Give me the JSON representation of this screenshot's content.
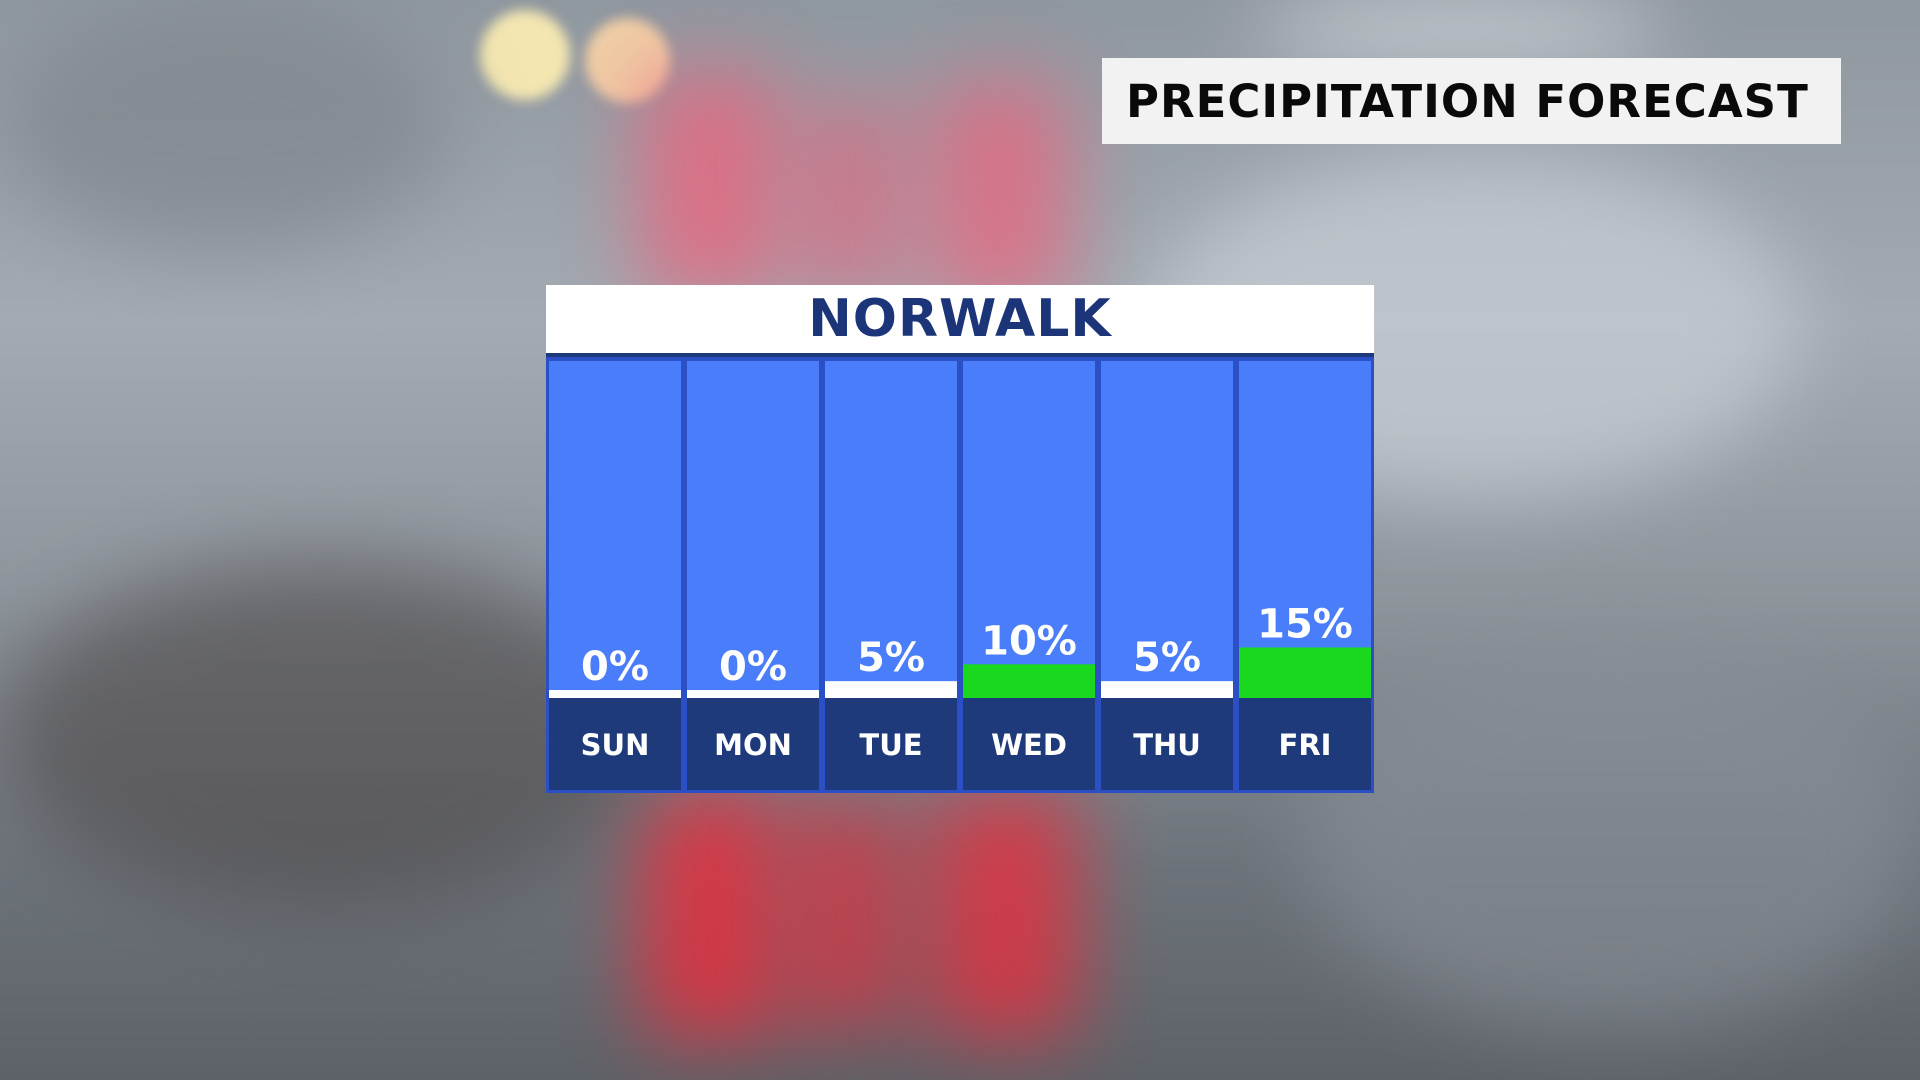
{
  "graphic": {
    "title": "PRECIPITATION FORECAST",
    "location": "NORWALK"
  },
  "colors": {
    "column_fill": "#4a7dfa",
    "column_border": "#2b4fc4",
    "day_band": "#1f3a7a",
    "low_bar": "#ffffff",
    "rain_bar": "#19d81e",
    "title_box": "#f2f2f2"
  },
  "chart_data": {
    "type": "bar",
    "title": "PRECIPITATION FORECAST",
    "subtitle": "NORWALK",
    "categories": [
      "SUN",
      "MON",
      "TUE",
      "WED",
      "THU",
      "FRI"
    ],
    "values": [
      0,
      0,
      5,
      10,
      5,
      15
    ],
    "value_labels": [
      "0%",
      "0%",
      "5%",
      "10%",
      "5%",
      "15%"
    ],
    "unit": "%",
    "ylim": [
      0,
      100
    ],
    "grid": false,
    "legend": "none"
  }
}
